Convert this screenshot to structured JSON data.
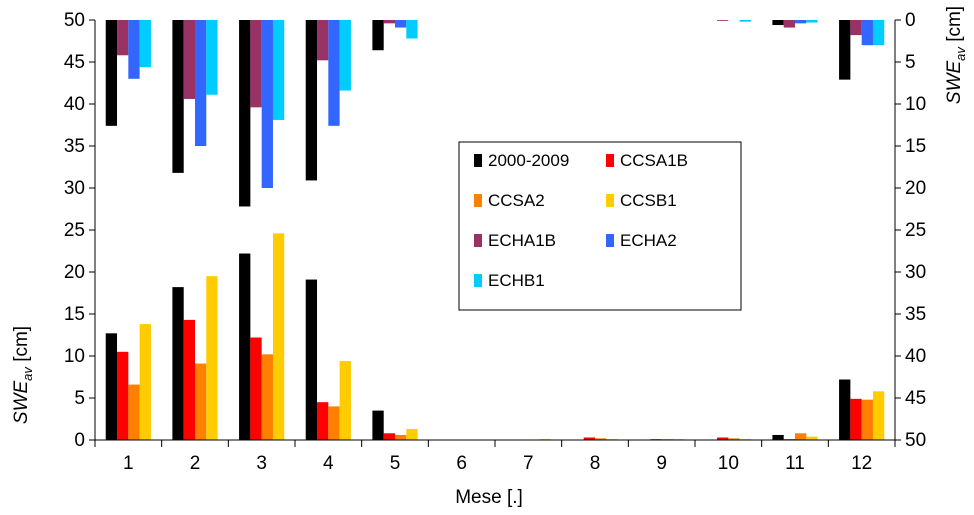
{
  "chart_data": {
    "type": "bar",
    "categories": [
      "1",
      "2",
      "3",
      "4",
      "5",
      "6",
      "7",
      "8",
      "9",
      "10",
      "11",
      "12"
    ],
    "xlabel": "Mese [.]",
    "ylabel": {
      "main": "SWE",
      "sub": "av",
      "unit": " [cm]"
    },
    "y2label": {
      "main": "SWE",
      "sub": "av",
      "unit": " [cm]"
    },
    "ylim": [
      0,
      50
    ],
    "y2lim": [
      50,
      0
    ],
    "yticks": [
      "0",
      "5",
      "10",
      "15",
      "20",
      "25",
      "30",
      "35",
      "40",
      "45",
      "50"
    ],
    "y2ticks": [
      "0",
      "5",
      "10",
      "15",
      "20",
      "25",
      "30",
      "35",
      "40",
      "45",
      "50"
    ],
    "grid": false,
    "legend_position": "center-right",
    "series_lower": [
      {
        "name": "2000-2009",
        "color": "#000000",
        "values": [
          12.7,
          18.2,
          22.2,
          19.1,
          3.5,
          0,
          0,
          0,
          0,
          0,
          0.6,
          7.2
        ]
      },
      {
        "name": "CCSA1B",
        "color": "#ff0000",
        "values": [
          10.5,
          14.3,
          12.2,
          4.5,
          0.8,
          0,
          0,
          0.3,
          0.1,
          0.3,
          0.1,
          4.9
        ]
      },
      {
        "name": "CCSA2",
        "color": "#ff7f00",
        "values": [
          6.6,
          9.1,
          10.2,
          4.0,
          0.6,
          0,
          0,
          0.2,
          0.1,
          0.2,
          0.8,
          4.8
        ]
      },
      {
        "name": "CCSB1",
        "color": "#ffcc00",
        "values": [
          13.8,
          19.5,
          24.6,
          9.4,
          1.3,
          0,
          0.1,
          0.1,
          0.1,
          0.1,
          0.4,
          5.8
        ]
      }
    ],
    "series_upper": [
      {
        "name": "2000-2009",
        "color": "#000000",
        "values": [
          12.6,
          18.2,
          22.2,
          19.1,
          3.6,
          0,
          0,
          0,
          0,
          0,
          0.6,
          7.1
        ]
      },
      {
        "name": "ECHA1B",
        "color": "#993366",
        "values": [
          4.2,
          9.4,
          10.4,
          4.8,
          0.4,
          0,
          0,
          0,
          0,
          0.1,
          0.9,
          1.8
        ]
      },
      {
        "name": "ECHA2",
        "color": "#3366ff",
        "values": [
          7.0,
          15.0,
          20.0,
          12.6,
          0.9,
          0,
          0,
          0,
          0,
          0,
          0.4,
          3.0
        ]
      },
      {
        "name": "ECHB1",
        "color": "#00ccff",
        "values": [
          5.6,
          8.9,
          11.9,
          8.4,
          2.2,
          0,
          0,
          0,
          0,
          0.2,
          0.3,
          3.0
        ]
      }
    ],
    "legend": [
      {
        "name": "2000-2009",
        "color": "#000000"
      },
      {
        "name": "CCSA1B",
        "color": "#ff0000"
      },
      {
        "name": "CCSA2",
        "color": "#ff7f00"
      },
      {
        "name": "CCSB1",
        "color": "#ffcc00"
      },
      {
        "name": "ECHA1B",
        "color": "#993366"
      },
      {
        "name": "ECHA2",
        "color": "#3366ff"
      },
      {
        "name": "ECHB1",
        "color": "#00ccff"
      }
    ]
  }
}
